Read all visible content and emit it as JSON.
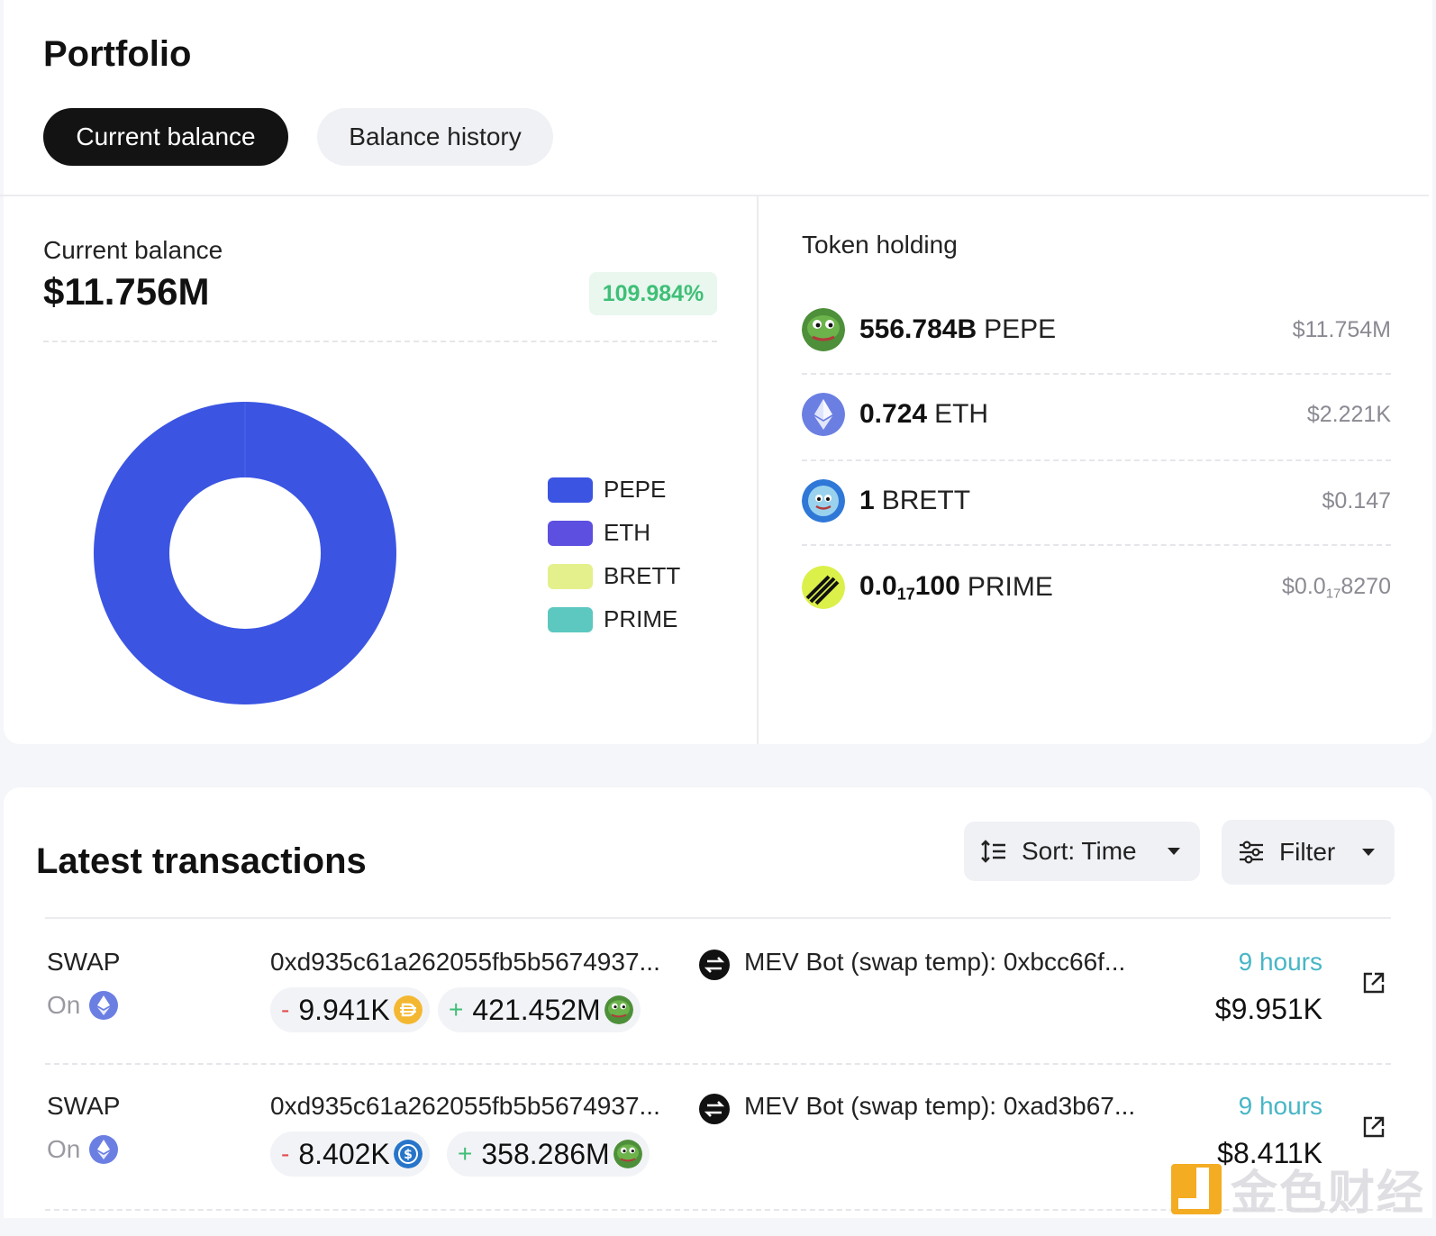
{
  "portfolio": {
    "title": "Portfolio",
    "tabs": [
      "Current balance",
      "Balance history"
    ],
    "current_balance_label": "Current balance",
    "current_balance_value": "$11.756M",
    "change_percent": "109.984%",
    "token_holding_label": "Token holding"
  },
  "chart_data": {
    "type": "pie",
    "style": "donut",
    "categories": [
      "PEPE",
      "ETH",
      "BRETT",
      "PRIME"
    ],
    "values": [
      11.754,
      0.002221,
      1.47e-07,
      0.0
    ],
    "colors": [
      "#3b55e2",
      "#5d4fe0",
      "#e4f08c",
      "#5cc8c0"
    ],
    "legend_position": "right"
  },
  "legend": [
    {
      "label": "PEPE",
      "color": "#3b55e2"
    },
    {
      "label": "ETH",
      "color": "#5d4fe0"
    },
    {
      "label": "BRETT",
      "color": "#e4f08c"
    },
    {
      "label": "PRIME",
      "color": "#5cc8c0"
    }
  ],
  "tokens": [
    {
      "amount": "556.784B",
      "symbol": "PEPE",
      "value": "$11.754M",
      "icon": "pepe-icon"
    },
    {
      "amount": "0.724",
      "symbol": "ETH",
      "value": "$2.221K",
      "icon": "eth-icon"
    },
    {
      "amount": "1",
      "symbol": "BRETT",
      "value": "$0.147",
      "icon": "brett-icon"
    },
    {
      "amount_parts": [
        "0.0",
        "17",
        "100"
      ],
      "symbol": "PRIME",
      "value_parts": [
        "$0.0",
        "17",
        "8270"
      ],
      "icon": "prime-icon"
    }
  ],
  "transactions_section": {
    "title": "Latest transactions",
    "sort_label": "Sort: Time",
    "filter_label": "Filter"
  },
  "transactions": [
    {
      "type": "SWAP",
      "on_label": "On",
      "hash": "0xd935c61a262055fb5b5674937...",
      "counterparty": "MEV Bot (swap temp): 0xbcc66f...",
      "out_sign": "-",
      "out_amount": "9.941K",
      "in_sign": "+",
      "in_amount": "421.452M",
      "time": "9 hours",
      "usd": "$9.951K"
    },
    {
      "type": "SWAP",
      "on_label": "On",
      "hash": "0xd935c61a262055fb5b5674937...",
      "counterparty": "MEV Bot (swap temp): 0xad3b67...",
      "out_sign": "-",
      "out_amount": "8.402K",
      "in_sign": "+",
      "in_amount": "358.286M",
      "time": "9 hours",
      "usd": "$8.411K"
    }
  ],
  "watermark": {
    "text": "金色财经"
  }
}
